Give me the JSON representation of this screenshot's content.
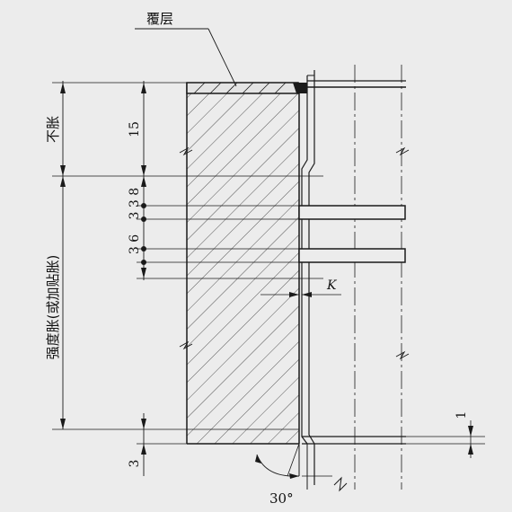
{
  "labels": {
    "cladding": "覆层",
    "no_expansion": "不胀",
    "strength_expansion": "强度胀(或加贴胀)",
    "k_symbol": "K",
    "angle": "30°"
  },
  "dimensions": {
    "no_expansion_len": "15",
    "groove_upper": "3 8",
    "groove_upper_gap": "3",
    "groove_lower": "3 6",
    "bottom_len": "3",
    "right_offset": "1"
  },
  "colors": {
    "background": "#ececec",
    "line": "#1a1a1a"
  }
}
